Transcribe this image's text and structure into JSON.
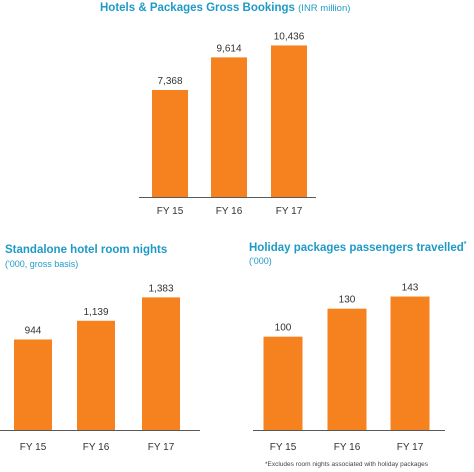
{
  "colors": {
    "bar": "#f5821f",
    "axis": "#595959",
    "text": "#333333",
    "title": "#1f9ac7"
  },
  "chart_data": [
    {
      "type": "bar",
      "title": "Hotels & Packages Gross Bookings",
      "unit": "(INR million)",
      "subtitle": "",
      "categories": [
        "FY 15",
        "FY 16",
        "FY 17"
      ],
      "values": [
        7368,
        9614,
        10436
      ],
      "value_labels": [
        "7,368",
        "9,614",
        "10,436"
      ],
      "ylim": [
        0,
        11500
      ]
    },
    {
      "type": "bar",
      "title": "Standalone hotel room nights",
      "unit": "",
      "subtitle": "('000, gross basis)",
      "categories": [
        "FY 15",
        "FY 16",
        "FY 17"
      ],
      "values": [
        944,
        1139,
        1383
      ],
      "value_labels": [
        "944",
        "1,139",
        "1,383"
      ],
      "ylim": [
        0,
        1460
      ]
    },
    {
      "type": "bar",
      "title": "Holiday packages passengers travelled",
      "title_mark": "*",
      "unit": "",
      "subtitle": "('000)",
      "categories": [
        "FY 15",
        "FY 16",
        "FY 17"
      ],
      "values": [
        100,
        130,
        143
      ],
      "value_labels": [
        "100",
        "130",
        "143"
      ],
      "ylim": [
        0,
        150
      ]
    }
  ],
  "footnote": "*Excludes room nights associated with holiday packages"
}
